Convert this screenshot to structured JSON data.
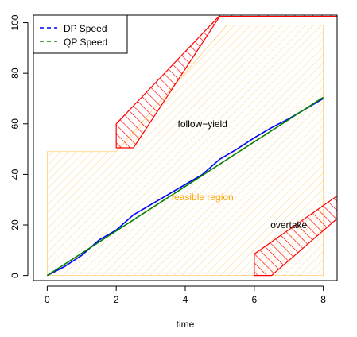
{
  "chart_data": {
    "type": "line",
    "xlabel": "time",
    "ylabel": "",
    "xlim": [
      -0.4,
      8.4
    ],
    "ylim": [
      -2,
      103
    ],
    "xticks": [
      0,
      2,
      4,
      6,
      8
    ],
    "yticks": [
      0,
      20,
      40,
      60,
      80,
      100
    ],
    "grid": false,
    "legend_position": "top-left",
    "series": [
      {
        "name": "DP Speed",
        "color": "#0000ff",
        "line_style": "dashed",
        "x": [
          0,
          0.5,
          1.0,
          1.5,
          2.0,
          2.5,
          3.0,
          3.5,
          4.0,
          4.5,
          5.0,
          5.5,
          6.0,
          6.5,
          7.0,
          7.5,
          8.0
        ],
        "y": [
          0,
          3.5,
          8,
          14,
          18,
          24,
          28,
          32,
          36,
          40,
          46,
          50,
          54.5,
          58.5,
          62,
          66,
          70
        ]
      },
      {
        "name": "QP Speed",
        "color": "#008000",
        "line_style": "dashed",
        "x": [
          0,
          8.0
        ],
        "y": [
          0,
          70.5
        ]
      }
    ],
    "regions": [
      {
        "label": "feasible region",
        "color": "#ffa500",
        "polygon_x": [
          0,
          8,
          8,
          5.2,
          2,
          0
        ],
        "polygon_y": [
          0,
          0,
          99,
          99,
          49,
          49
        ]
      },
      {
        "label": "follow−yield",
        "color": "#ff0000",
        "polygon_x": [
          2,
          2,
          5.5,
          8.4,
          8.4,
          5,
          2.5
        ],
        "polygon_y": [
          50.5,
          60,
          110,
          110,
          102.5,
          102.5,
          50.5
        ]
      },
      {
        "label": "overtake",
        "color": "#ff0000",
        "polygon_x": [
          6,
          6,
          8.4,
          8.4,
          6.5
        ],
        "polygon_y": [
          0,
          8.5,
          31.5,
          22.5,
          0
        ]
      }
    ],
    "annotations": [
      {
        "text": "follow−yield",
        "x": 4.5,
        "y": 60,
        "color": "#000000"
      },
      {
        "text": "feasible region",
        "x": 4.5,
        "y": 31,
        "color": "#ffa500"
      },
      {
        "text": "overtake",
        "x": 7.0,
        "y": 20,
        "color": "#000000"
      }
    ]
  }
}
